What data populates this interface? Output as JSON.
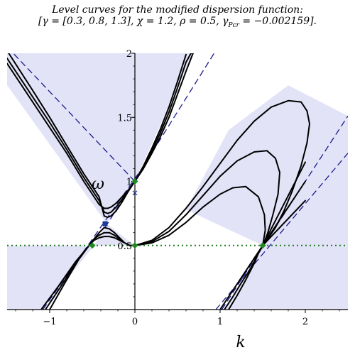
{
  "chart_data": {
    "type": "line",
    "title_line1": "Level curves for the modified dispersion function:",
    "title_line2_pre": "[γ = [0.3, 0.8, 1.3], χ = 1.2, ρ = 0.5, γ",
    "title_line2_sub": "Pcr",
    "title_line2_post": " = −0.002159].",
    "xlabel": "k",
    "ylabel": "ω",
    "xlim": [
      -1.5,
      2.5
    ],
    "ylim": [
      0,
      2
    ],
    "x_ticks": [
      -1,
      0,
      1,
      2
    ],
    "x_tick_labels": [
      "−1",
      "0",
      "1",
      "2"
    ],
    "y_ticks": [
      0.5,
      1,
      1.5,
      2
    ],
    "y_tick_labels": [
      "0.5",
      "1",
      "1.5",
      "2"
    ],
    "colors": {
      "shade": "#e3e3f8",
      "curve": "#000000",
      "asymptote": "#1a1a8c",
      "threshold": "#1f7a1f",
      "marker_green": "#1f8a1f",
      "marker_blue": "#1a3a9c"
    },
    "threshold_line": {
      "y": 0.5,
      "style": "dotted"
    },
    "asymptotes": [
      {
        "name": "",
        "x": [
          -1.5,
          0.0
        ],
        "y": [
          2.05,
          1.0
        ]
      },
      {
        "name": "",
        "x": [
          -0.35,
          0.93
        ],
        "y": [
          0.64,
          2.0
        ]
      },
      {
        "name": "",
        "x": [
          -1.08,
          0.05
        ],
        "y": [
          0.0,
          1.07
        ]
      },
      {
        "name": "",
        "x": [
          1.02,
          2.5
        ],
        "y": [
          0.0,
          1.51
        ]
      },
      {
        "name": "",
        "x": [
          0.95,
          2.5
        ],
        "y": [
          0.0,
          1.22
        ]
      }
    ],
    "series": [
      {
        "name": "",
        "x": [
          -1.5,
          -1.2,
          -1.0,
          -0.8,
          -0.6,
          -0.5,
          -0.42,
          -0.36,
          -0.32,
          -0.28,
          -0.22,
          -0.15,
          -0.08,
          0.0,
          0.1,
          0.2,
          0.3,
          0.4,
          0.5,
          0.6,
          0.7
        ],
        "y": [
          1.92,
          1.62,
          1.42,
          1.22,
          1.0,
          0.9,
          0.82,
          0.79,
          0.79,
          0.8,
          0.83,
          0.88,
          0.93,
          1.0,
          1.1,
          1.22,
          1.35,
          1.5,
          1.68,
          1.86,
          2.03
        ]
      },
      {
        "name": "",
        "x": [
          -1.5,
          -1.2,
          -1.0,
          -0.8,
          -0.6,
          -0.5,
          -0.42,
          -0.36,
          -0.32,
          -0.28,
          -0.22,
          -0.15,
          -0.08,
          0.0,
          0.1,
          0.2,
          0.3,
          0.4,
          0.5,
          0.6,
          0.7
        ],
        "y": [
          1.96,
          1.66,
          1.46,
          1.25,
          1.03,
          0.93,
          0.85,
          0.76,
          0.75,
          0.76,
          0.8,
          0.86,
          0.93,
          1.0,
          1.11,
          1.24,
          1.38,
          1.54,
          1.73,
          1.93,
          2.05
        ]
      },
      {
        "name": "",
        "x": [
          -1.5,
          -1.2,
          -1.0,
          -0.8,
          -0.6,
          -0.5,
          -0.42,
          -0.36,
          -0.32,
          -0.28,
          -0.22,
          -0.15,
          -0.08,
          0.0,
          0.1,
          0.2,
          0.3,
          0.4,
          0.5,
          0.6
        ],
        "y": [
          2.02,
          1.71,
          1.5,
          1.28,
          1.06,
          0.96,
          0.88,
          0.73,
          0.72,
          0.73,
          0.77,
          0.84,
          0.92,
          1.0,
          1.12,
          1.26,
          1.41,
          1.58,
          1.78,
          1.99
        ]
      },
      {
        "name": "",
        "x": [
          -1.1,
          -0.9,
          -0.7,
          -0.55,
          -0.48,
          -0.42,
          -0.36,
          -0.3,
          -0.24,
          -0.18,
          -0.12,
          -0.06,
          0.0
        ],
        "y": [
          0.0,
          0.18,
          0.37,
          0.49,
          0.55,
          0.6,
          0.64,
          0.63,
          0.6,
          0.56,
          0.52,
          0.5,
          0.5
        ]
      },
      {
        "name": "",
        "x": [
          -1.05,
          -0.85,
          -0.68,
          -0.55,
          -0.48,
          -0.42,
          -0.36,
          -0.3,
          -0.24,
          -0.18,
          -0.12,
          -0.06,
          0.0
        ],
        "y": [
          0.0,
          0.2,
          0.38,
          0.49,
          0.55,
          0.58,
          0.6,
          0.6,
          0.58,
          0.55,
          0.52,
          0.5,
          0.5
        ]
      },
      {
        "name": "",
        "x": [
          -1.0,
          -0.82,
          -0.66,
          -0.55,
          -0.48,
          -0.42,
          -0.36,
          -0.3,
          -0.24,
          -0.18,
          -0.12,
          -0.06,
          0.0
        ],
        "y": [
          0.0,
          0.21,
          0.39,
          0.49,
          0.54,
          0.56,
          0.57,
          0.57,
          0.56,
          0.54,
          0.52,
          0.5,
          0.5
        ]
      },
      {
        "name": "",
        "x": [
          0.0,
          0.2,
          0.4,
          0.6,
          0.8,
          1.0,
          1.2,
          1.4,
          1.6,
          1.8,
          1.95,
          2.02,
          2.05,
          2.02,
          1.95,
          1.85,
          1.75,
          1.65,
          1.55,
          1.5
        ],
        "y": [
          0.5,
          0.54,
          0.64,
          0.79,
          0.96,
          1.14,
          1.32,
          1.47,
          1.58,
          1.63,
          1.62,
          1.55,
          1.45,
          1.3,
          1.12,
          0.93,
          0.77,
          0.64,
          0.54,
          0.5
        ]
      },
      {
        "name": "",
        "x": [
          0.0,
          0.2,
          0.4,
          0.6,
          0.8,
          1.0,
          1.2,
          1.4,
          1.55,
          1.65,
          1.7,
          1.68,
          1.62,
          1.56,
          1.52,
          1.5
        ],
        "y": [
          0.5,
          0.53,
          0.61,
          0.74,
          0.89,
          1.04,
          1.16,
          1.23,
          1.24,
          1.18,
          1.07,
          0.9,
          0.74,
          0.6,
          0.53,
          0.5
        ]
      },
      {
        "name": "",
        "x": [
          0.0,
          0.2,
          0.4,
          0.6,
          0.8,
          1.0,
          1.15,
          1.3,
          1.45,
          1.52,
          1.53,
          1.51,
          1.5
        ],
        "y": [
          0.5,
          0.52,
          0.58,
          0.68,
          0.8,
          0.9,
          0.95,
          0.96,
          0.88,
          0.74,
          0.62,
          0.54,
          0.5
        ]
      },
      {
        "name": "",
        "x": [
          1.0,
          1.1,
          1.2,
          1.3,
          1.4,
          1.5,
          1.6,
          1.7,
          1.8,
          1.9,
          2.0
        ],
        "y": [
          0.0,
          0.1,
          0.2,
          0.3,
          0.4,
          0.5,
          0.57,
          0.64,
          0.71,
          0.78,
          0.85
        ]
      },
      {
        "name": "",
        "x": [
          1.05,
          1.15,
          1.25,
          1.35,
          1.45,
          1.5,
          1.6,
          1.7,
          1.8,
          1.9,
          2.0
        ],
        "y": [
          0.0,
          0.1,
          0.21,
          0.31,
          0.44,
          0.5,
          0.6,
          0.7,
          0.8,
          0.9,
          1.0
        ]
      },
      {
        "name": "",
        "x": [
          1.1,
          1.2,
          1.3,
          1.4,
          1.45,
          1.5,
          1.6,
          1.7,
          1.8,
          1.9,
          2.0
        ],
        "y": [
          0.0,
          0.11,
          0.23,
          0.36,
          0.44,
          0.5,
          0.63,
          0.76,
          0.89,
          1.02,
          1.15
        ]
      }
    ],
    "shaded_regions": [
      {
        "x": [
          -1.5,
          -1.5,
          -0.33,
          0.0,
          0.68,
          -0.05
        ],
        "y": [
          2.0,
          1.75,
          0.67,
          1.0,
          2.0,
          2.0
        ]
      },
      {
        "x": [
          -1.5,
          -1.5,
          -1.08,
          -0.48,
          -0.33,
          -0.0,
          0.0
        ],
        "y": [
          0.5,
          0.0,
          0.0,
          0.5,
          0.67,
          0.5,
          0.5
        ]
      },
      {
        "x": [
          1.05,
          2.5,
          2.5,
          1.5
        ],
        "y": [
          0.0,
          0.0,
          1.51,
          0.5
        ]
      },
      {
        "x": [
          1.5,
          0.6,
          1.1,
          1.8,
          2.5,
          2.5
        ],
        "y": [
          0.5,
          0.78,
          1.4,
          1.75,
          1.51,
          1.22
        ]
      }
    ],
    "markers": [
      {
        "shape": "diamond",
        "color": "marker_green",
        "x": -0.5,
        "y": 0.5
      },
      {
        "shape": "diamond",
        "color": "marker_green",
        "x": 0.0,
        "y": 0.5
      },
      {
        "shape": "diamond",
        "color": "marker_green",
        "x": 0.0,
        "y": 1.0
      },
      {
        "shape": "diamond",
        "color": "marker_green",
        "x": 1.5,
        "y": 0.5
      },
      {
        "shape": "square",
        "color": "marker_blue",
        "x": -0.35,
        "y": 0.67
      },
      {
        "shape": "cross",
        "color": "marker_blue",
        "x": 0.0,
        "y": 0.91
      }
    ],
    "grid": false,
    "legend": "none"
  }
}
